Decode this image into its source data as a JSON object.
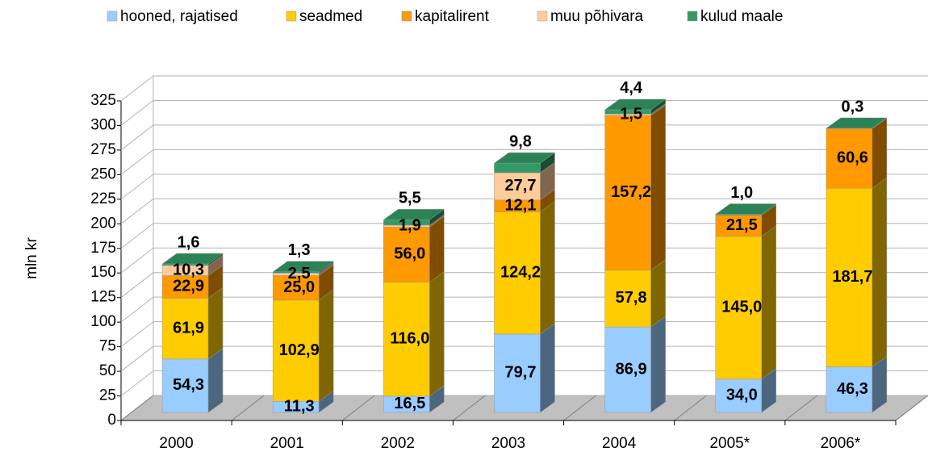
{
  "chart_data": {
    "type": "bar3d_stacked",
    "categories": [
      "2000",
      "2001",
      "2002",
      "2003",
      "2004",
      "2005*",
      "2006*"
    ],
    "y_label": "mln kr",
    "ylim": [
      0,
      325
    ],
    "yticks": [
      0,
      25,
      50,
      75,
      100,
      125,
      150,
      175,
      200,
      225,
      250,
      275,
      300,
      325
    ],
    "grid": true,
    "legend": "top",
    "series": [
      {
        "name": "hooned, rajatised",
        "color": "#99ccff",
        "values": [
          54.3,
          11.3,
          16.5,
          79.7,
          86.9,
          34.0,
          46.3
        ],
        "value_labels": [
          "54,3",
          "11,3",
          "16,5",
          "79,7",
          "86,9",
          "34,0",
          "46,3"
        ]
      },
      {
        "name": "seadmed",
        "color": "#ffcc00",
        "values": [
          61.9,
          102.9,
          116.0,
          124.2,
          57.8,
          145.0,
          181.7
        ],
        "value_labels": [
          "61,9",
          "102,9",
          "116,0",
          "124,2",
          "57,8",
          "145,0",
          "181,7"
        ]
      },
      {
        "name": "kapitalirent",
        "color": "#ff9900",
        "values": [
          22.9,
          25.0,
          56.0,
          12.1,
          157.2,
          21.5,
          60.6
        ],
        "value_labels": [
          "22,9",
          "25,0",
          "56,0",
          "12,1",
          "157,2",
          "21,5",
          "60,6"
        ]
      },
      {
        "name": "muu põhivara",
        "color": "#ffcc99",
        "values": [
          10.3,
          2.5,
          1.9,
          27.7,
          1.5,
          0,
          0
        ],
        "value_labels": [
          "10,3",
          "2,5",
          "1,9",
          "27,7",
          "1,5",
          null,
          null
        ]
      },
      {
        "name": "kulud maale",
        "color": "#339966",
        "values": [
          1.6,
          1.3,
          5.5,
          9.8,
          4.4,
          1.0,
          0.3
        ],
        "value_labels": [
          "1,6",
          "1,3",
          "5,5",
          "9,8",
          "4,4",
          "1,0",
          "0,3"
        ]
      }
    ]
  }
}
